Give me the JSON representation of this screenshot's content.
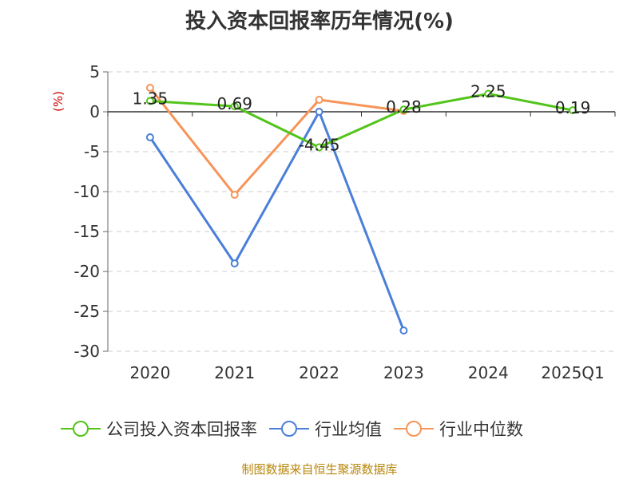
{
  "title": "投入资本回报率历年情况(%)",
  "source": "制图数据来自恒生聚源数据库",
  "chart_data": {
    "type": "line",
    "ylabel": "(%)",
    "ylim": [
      -30,
      5
    ],
    "yticks": [
      5,
      0,
      -5,
      -10,
      -15,
      -20,
      -25,
      -30
    ],
    "categories": [
      "2020",
      "2021",
      "2022",
      "2023",
      "2024",
      "2025Q1"
    ],
    "grid": true,
    "legend_position": "bottom",
    "series": [
      {
        "name": "公司投入资本回报率",
        "color": "#52c41a",
        "values": [
          1.35,
          0.69,
          -4.45,
          0.28,
          2.25,
          0.19
        ],
        "labels": [
          "1.35",
          "0.69",
          "-4.45",
          "0.28",
          "2.25",
          "0.19"
        ]
      },
      {
        "name": "行业均值",
        "color": "#4a7fd9",
        "values": [
          -3.2,
          -19,
          0,
          -27.4,
          null,
          null
        ]
      },
      {
        "name": "行业中位数",
        "color": "#f79459",
        "values": [
          3,
          -10.4,
          1.5,
          0.1,
          null,
          null
        ]
      }
    ]
  }
}
